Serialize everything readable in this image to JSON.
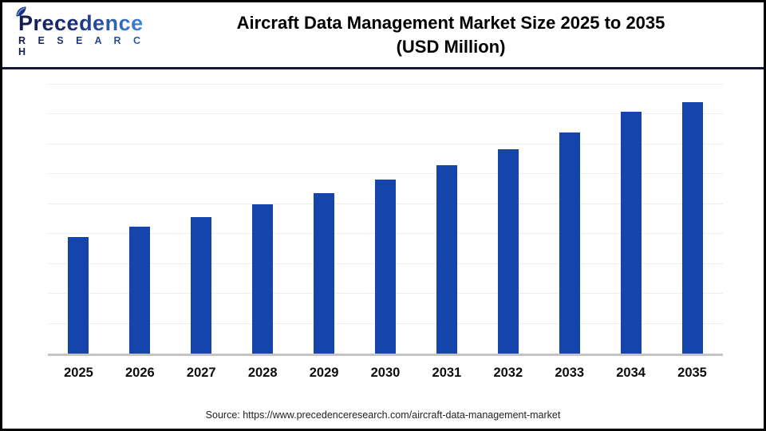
{
  "header": {
    "logo": {
      "wordmark": "Precedence",
      "subtext": "R E S E A R C H"
    },
    "title_line1": "Aircraft Data Management Market Size 2025 to 2035",
    "title_line2": "(USD Million)"
  },
  "source_text": "Source: https://www.precedenceresearch.com/aircraft-data-management-market",
  "colors": {
    "bar": "#1544ac",
    "logo_dark_navy": "#141b4d",
    "logo_light_blue": "#3f86d8",
    "header_divider": "#161638",
    "gridline": "#ededed",
    "axis_line": "#c4c4c4",
    "title_text": "#000000",
    "tick_text": "#0d0d0d"
  },
  "chart_data": {
    "type": "bar",
    "title": "Aircraft Data Management Market Size 2025 to 2035 (USD Million)",
    "categories": [
      "2025",
      "2026",
      "2027",
      "2028",
      "2029",
      "2030",
      "2031",
      "2032",
      "2033",
      "2034",
      "2035"
    ],
    "values": [
      43.6,
      47.5,
      51.3,
      56.1,
      60.2,
      65.3,
      70.6,
      76.6,
      82.8,
      90.8,
      94.4
    ],
    "value_units": "percent of plot height (bars carry no numeric data labels and the y-axis has no tick labels in the image)",
    "xlabel": "",
    "ylabel": "",
    "ylim": [
      0,
      100
    ],
    "y_axis_tick_labels": "none",
    "gridlines": "horizontal, 9 evenly spaced light-gray lines",
    "legend": "none",
    "bar_color": "#1544ac"
  }
}
